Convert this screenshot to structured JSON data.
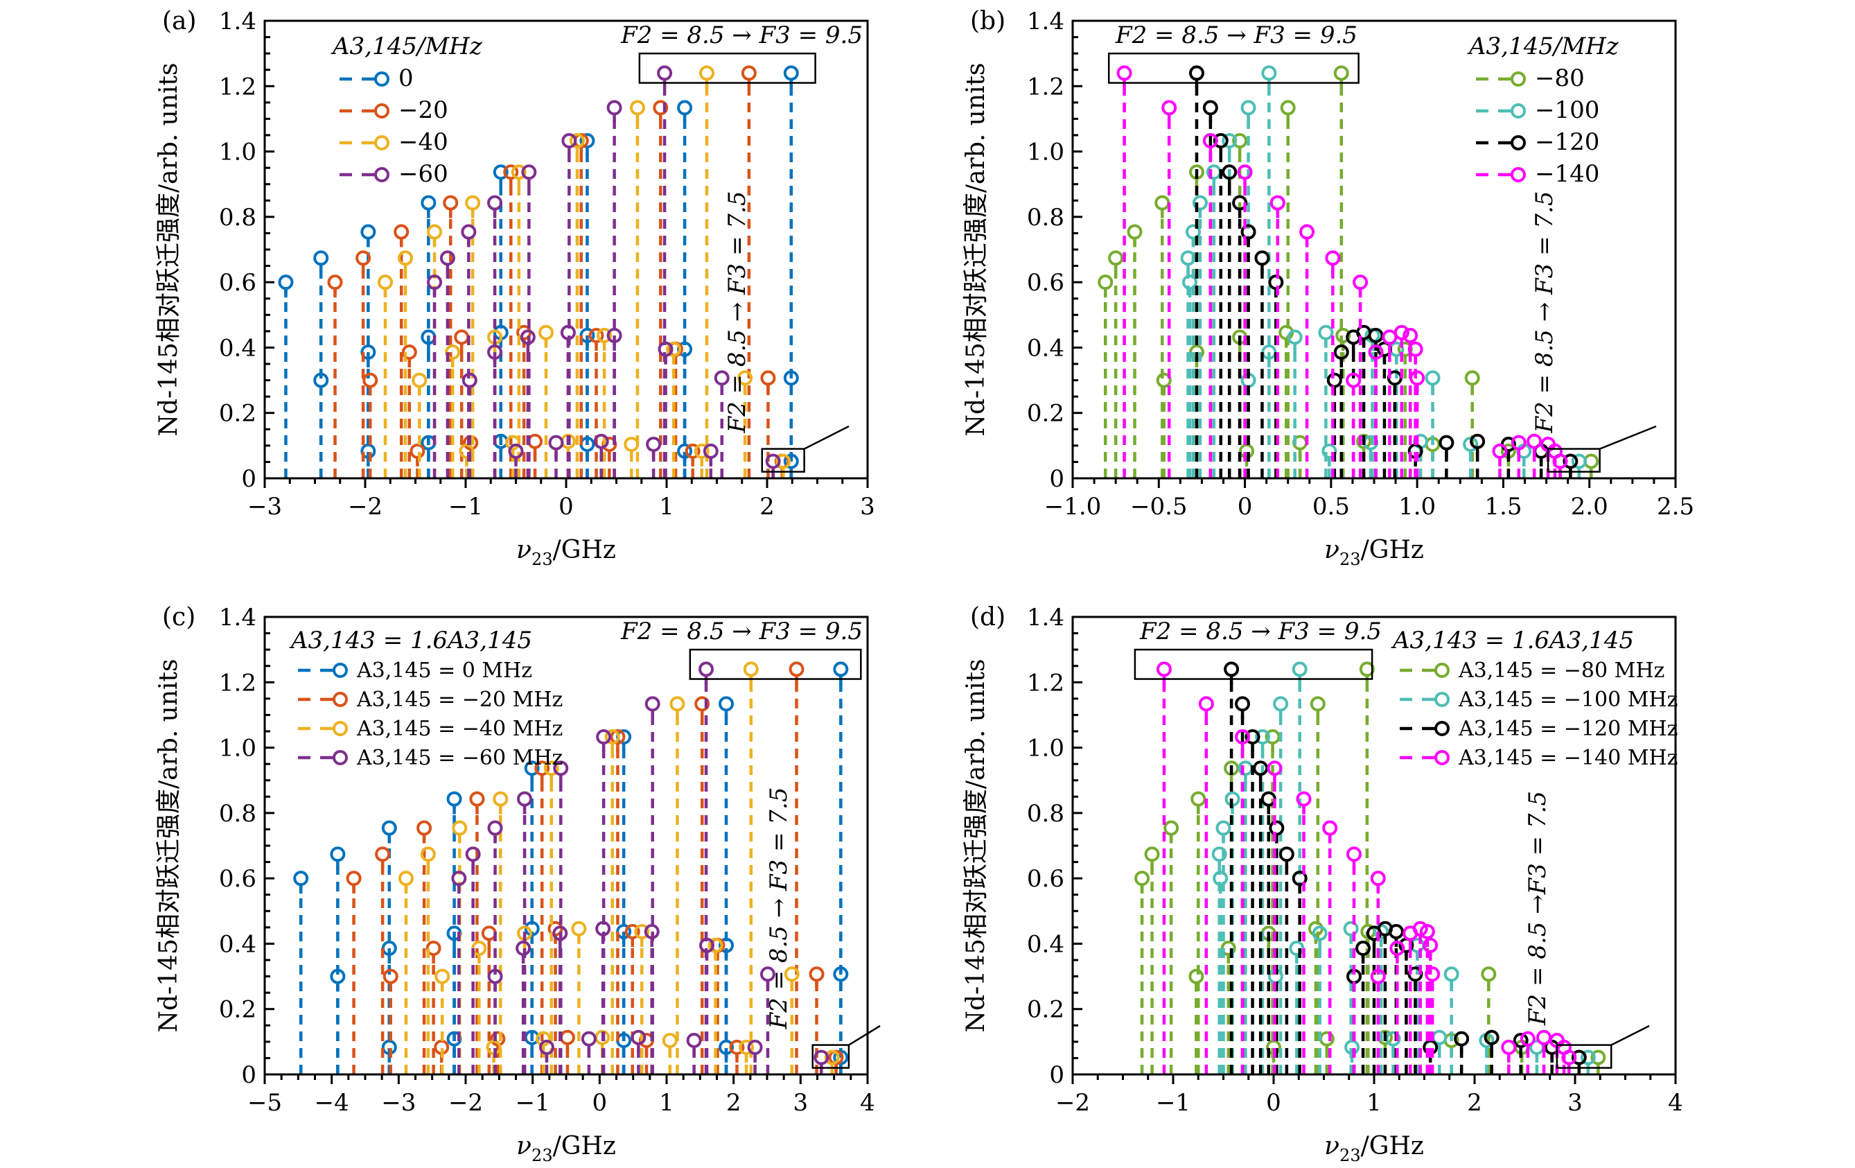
{
  "figure": {
    "ylabel": "Nd-145相对跃迁强度/arb. units",
    "xlabel": "ν23/GHz",
    "annot_top": "F2 = 8.5 → F3 = 9.5",
    "annot_side": "F2 = 8.5 → F3 = 7.5"
  },
  "chart_data": [
    {
      "panel": "(a)",
      "type": "stem",
      "xlim": [
        -3,
        3
      ],
      "ylim": [
        0,
        1.4
      ],
      "xticks": [
        -3,
        -2,
        -1,
        0,
        1,
        2,
        3
      ],
      "xtick_labels": [
        "−3",
        "−2",
        "−1",
        "0",
        "1",
        "2",
        "3"
      ],
      "yticks": [
        0,
        0.2,
        0.4,
        0.6,
        0.8,
        1.0,
        1.2,
        1.4
      ],
      "ytick_labels": [
        "0",
        "0.2",
        "0.4",
        "0.6",
        "0.8",
        "1.0",
        "1.2",
        "1.4"
      ],
      "xlabel": "ν23/GHz",
      "ylabel": "Nd-145相对跃迁强度/arb. units",
      "legend_title": "A3,145/MHz",
      "legend_placement": "top-left",
      "annotation_top": "F2 = 8.5 → F3 = 9.5",
      "annotation_side": "F2 = 8.5 → F3 = 7.5",
      "series": [
        {
          "name": "0",
          "color": "#0072BD",
          "x": [
            -2.79,
            -2.44,
            -1.97,
            -1.37,
            -0.65,
            0.21,
            1.18,
            2.24,
            -2.44,
            -1.97,
            -1.37,
            -0.65,
            0.21,
            1.18,
            2.24,
            -1.97,
            -1.37,
            -0.65,
            0.21,
            1.18,
            2.24
          ],
          "y": [
            0.6,
            0.674,
            0.754,
            0.843,
            0.937,
            1.033,
            1.134,
            1.24,
            0.3,
            0.386,
            0.432,
            0.446,
            0.437,
            0.395,
            0.307,
            0.083,
            0.109,
            0.113,
            0.104,
            0.083,
            0.052
          ]
        },
        {
          "name": "−20",
          "color": "#D95319",
          "x": [
            -2.3,
            -2.02,
            -1.64,
            -1.15,
            -0.55,
            0.15,
            0.94,
            1.82,
            -1.95,
            -1.56,
            -1.04,
            -0.42,
            0.3,
            1.09,
            2.01,
            -1.48,
            -0.95,
            -0.31,
            0.43,
            1.26,
            2.15
          ],
          "y": [
            0.6,
            0.674,
            0.754,
            0.843,
            0.937,
            1.033,
            1.134,
            1.24,
            0.3,
            0.386,
            0.432,
            0.446,
            0.437,
            0.395,
            0.307,
            0.083,
            0.109,
            0.113,
            0.104,
            0.083,
            0.052
          ]
        },
        {
          "name": "−40",
          "color": "#EDB120",
          "x": [
            -1.8,
            -1.6,
            -1.31,
            -0.93,
            -0.47,
            0.11,
            0.71,
            1.4,
            -1.46,
            -1.13,
            -0.71,
            -0.2,
            0.38,
            1.07,
            1.78,
            -0.99,
            -0.53,
            0.02,
            0.65,
            1.35,
            2.16
          ],
          "y": [
            0.6,
            0.674,
            0.754,
            0.843,
            0.937,
            1.033,
            1.134,
            1.24,
            0.3,
            0.386,
            0.432,
            0.446,
            0.437,
            0.395,
            0.307,
            0.083,
            0.109,
            0.113,
            0.104,
            0.083,
            0.052
          ]
        },
        {
          "name": "−60",
          "color": "#7E2F8E",
          "x": [
            -1.31,
            -1.18,
            -0.97,
            -0.71,
            -0.37,
            0.03,
            0.48,
            0.98,
            -0.96,
            -0.71,
            -0.38,
            0.02,
            0.48,
            0.99,
            1.55,
            -0.5,
            -0.1,
            0.35,
            0.87,
            1.44,
            2.06
          ],
          "y": [
            0.6,
            0.674,
            0.754,
            0.843,
            0.937,
            1.033,
            1.134,
            1.24,
            0.3,
            0.386,
            0.432,
            0.446,
            0.437,
            0.395,
            0.307,
            0.083,
            0.109,
            0.113,
            0.104,
            0.083,
            0.052
          ]
        }
      ]
    },
    {
      "panel": "(b)",
      "type": "stem",
      "xlim": [
        -1.0,
        2.5
      ],
      "ylim": [
        0,
        1.4
      ],
      "xticks": [
        -1.0,
        -0.5,
        0,
        0.5,
        1.0,
        1.5,
        2.0,
        2.5
      ],
      "xtick_labels": [
        "−1.0",
        "−0.5",
        "0",
        "0.5",
        "1.0",
        "1.5",
        "2.0",
        "2.5"
      ],
      "yticks": [
        0,
        0.2,
        0.4,
        0.6,
        0.8,
        1.0,
        1.2,
        1.4
      ],
      "ytick_labels": [
        "0",
        "0.2",
        "0.4",
        "0.6",
        "0.8",
        "1.0",
        "1.2",
        "1.4"
      ],
      "xlabel": "ν23/GHz",
      "ylabel": "Nd-145相对跃迁强度/arb. units",
      "legend_title": "A3,145/MHz",
      "legend_placement": "top-right",
      "annotation_top": "F2 = 8.5 → F3 = 9.5",
      "annotation_side": "F2 = 8.5 → F3 = 7.5",
      "series": [
        {
          "name": "−80",
          "color": "#77AC30",
          "x": [
            -0.81,
            -0.75,
            -0.64,
            -0.48,
            -0.28,
            -0.03,
            0.25,
            0.56,
            -0.47,
            -0.28,
            -0.03,
            0.24,
            0.57,
            0.93,
            1.32,
            0.01,
            0.32,
            0.69,
            1.09,
            1.53,
            2.01
          ],
          "y": [
            0.6,
            0.674,
            0.754,
            0.843,
            0.937,
            1.033,
            1.134,
            1.24,
            0.3,
            0.386,
            0.432,
            0.446,
            0.437,
            0.395,
            0.307,
            0.083,
            0.109,
            0.113,
            0.104,
            0.083,
            0.052
          ]
        },
        {
          "name": "−100",
          "color": "#4DBEB5",
          "x": [
            -0.32,
            -0.33,
            -0.3,
            -0.26,
            -0.18,
            -0.09,
            0.02,
            0.14,
            0.02,
            0.14,
            0.29,
            0.47,
            0.74,
            0.88,
            1.09,
            0.49,
            0.73,
            1.02,
            1.31,
            1.62,
            1.94
          ],
          "y": [
            0.6,
            0.674,
            0.754,
            0.843,
            0.937,
            1.033,
            1.134,
            1.24,
            0.3,
            0.386,
            0.432,
            0.446,
            0.437,
            0.395,
            0.307,
            0.083,
            0.109,
            0.113,
            0.104,
            0.083,
            0.052
          ]
        },
        {
          "name": "−120",
          "color": "#000000",
          "x": [
            0.18,
            0.1,
            0.02,
            -0.03,
            -0.09,
            -0.14,
            -0.2,
            -0.28,
            0.52,
            0.56,
            0.63,
            0.69,
            0.76,
            0.81,
            0.87,
            0.99,
            1.17,
            1.35,
            1.53,
            1.72,
            1.89
          ],
          "y": [
            0.6,
            0.674,
            0.754,
            0.843,
            0.937,
            1.033,
            1.134,
            1.24,
            0.3,
            0.386,
            0.432,
            0.446,
            0.437,
            0.395,
            0.307,
            0.083,
            0.109,
            0.113,
            0.104,
            0.083,
            0.052
          ]
        },
        {
          "name": "−140",
          "color": "#FF00FF",
          "x": [
            0.67,
            0.51,
            0.36,
            0.19,
            0.0,
            -0.2,
            -0.44,
            -0.7,
            0.63,
            0.76,
            0.84,
            0.91,
            0.96,
            0.99,
            1.0,
            1.48,
            1.59,
            1.68,
            1.76,
            1.8,
            1.83
          ],
          "y": [
            0.6,
            0.674,
            0.754,
            0.843,
            0.937,
            1.033,
            1.134,
            1.24,
            0.3,
            0.386,
            0.432,
            0.446,
            0.437,
            0.395,
            0.307,
            0.083,
            0.109,
            0.113,
            0.104,
            0.083,
            0.052
          ]
        }
      ]
    },
    {
      "panel": "(c)",
      "type": "stem",
      "xlim": [
        -5,
        4
      ],
      "ylim": [
        0,
        1.4
      ],
      "xticks": [
        -5,
        -4,
        -3,
        -2,
        -1,
        0,
        1,
        2,
        3,
        4
      ],
      "xtick_labels": [
        "−5",
        "−4",
        "−3",
        "−2",
        "−1",
        "0",
        "1",
        "2",
        "3",
        "4"
      ],
      "yticks": [
        0,
        0.2,
        0.4,
        0.6,
        0.8,
        1.0,
        1.2,
        1.4
      ],
      "ytick_labels": [
        "0",
        "0.2",
        "0.4",
        "0.6",
        "0.8",
        "1.0",
        "1.2",
        "1.4"
      ],
      "xlabel": "ν23/GHz",
      "ylabel": "Nd-145相对跃迁强度/arb. units",
      "legend_title": "A3,143 = 1.6A3,145",
      "legend_placement": "top-left",
      "annotation_top": "F2 = 8.5 → F3 = 9.5",
      "annotation_side": "F2 = 8.5 → F3 = 7.5",
      "series": [
        {
          "name": "A3,145 = 0 MHz",
          "color": "#0072BD",
          "x": [
            -4.46,
            -3.91,
            -3.14,
            -2.17,
            -1.01,
            0.36,
            1.89,
            3.6,
            -3.91,
            -3.14,
            -2.17,
            -1.01,
            0.36,
            1.89,
            3.6,
            -3.14,
            -2.17,
            -1.01,
            0.36,
            1.89,
            3.6
          ],
          "y": [
            0.6,
            0.674,
            0.754,
            0.843,
            0.937,
            1.033,
            1.134,
            1.24,
            0.3,
            0.386,
            0.432,
            0.446,
            0.437,
            0.395,
            0.307,
            0.083,
            0.109,
            0.113,
            0.104,
            0.083,
            0.052
          ]
        },
        {
          "name": "A3,145 = −20 MHz",
          "color": "#D95319",
          "x": [
            -3.67,
            -3.24,
            -2.62,
            -1.83,
            -0.86,
            0.27,
            1.53,
            2.94,
            -3.12,
            -2.48,
            -1.65,
            -0.66,
            0.49,
            1.76,
            3.24,
            -2.36,
            -1.52,
            -0.48,
            0.7,
            2.05,
            3.53
          ],
          "y": [
            0.6,
            0.674,
            0.754,
            0.843,
            0.937,
            1.033,
            1.134,
            1.24,
            0.3,
            0.386,
            0.432,
            0.446,
            0.437,
            0.395,
            0.307,
            0.083,
            0.109,
            0.113,
            0.104,
            0.083,
            0.052
          ]
        },
        {
          "name": "A3,145 = −40 MHz",
          "color": "#EDB120",
          "x": [
            -2.89,
            -2.56,
            -2.09,
            -1.48,
            -0.72,
            0.19,
            1.16,
            2.26,
            -2.35,
            -1.8,
            -1.12,
            -0.31,
            0.63,
            1.73,
            2.87,
            -1.58,
            -0.84,
            0.04,
            1.05,
            2.19,
            3.47
          ],
          "y": [
            0.6,
            0.674,
            0.754,
            0.843,
            0.937,
            1.033,
            1.134,
            1.24,
            0.3,
            0.386,
            0.432,
            0.446,
            0.437,
            0.395,
            0.307,
            0.083,
            0.109,
            0.113,
            0.104,
            0.083,
            0.052
          ]
        },
        {
          "name": "A3,145 = −60 MHz",
          "color": "#7E2F8E",
          "x": [
            -2.1,
            -1.89,
            -1.56,
            -1.12,
            -0.58,
            0.06,
            0.79,
            1.59,
            -1.56,
            -1.14,
            -0.59,
            0.05,
            0.78,
            1.6,
            2.51,
            -0.79,
            -0.16,
            0.58,
            1.41,
            2.32,
            3.31
          ],
          "y": [
            0.6,
            0.674,
            0.754,
            0.843,
            0.937,
            1.033,
            1.134,
            1.24,
            0.3,
            0.386,
            0.432,
            0.446,
            0.437,
            0.395,
            0.307,
            0.083,
            0.109,
            0.113,
            0.104,
            0.083,
            0.052
          ]
        }
      ]
    },
    {
      "panel": "(d)",
      "type": "stem",
      "xlim": [
        -2,
        4
      ],
      "ylim": [
        0,
        1.4
      ],
      "xticks": [
        -2,
        -1,
        0,
        1,
        2,
        3,
        4
      ],
      "xtick_labels": [
        "−2",
        "−1",
        "0",
        "1",
        "2",
        "3",
        "4"
      ],
      "yticks": [
        0,
        0.2,
        0.4,
        0.6,
        0.8,
        1.0,
        1.2,
        1.4
      ],
      "ytick_labels": [
        "0",
        "0.2",
        "0.4",
        "0.6",
        "0.8",
        "1.0",
        "1.2",
        "1.4"
      ],
      "xlabel": "ν23/GHz",
      "ylabel": "Nd-145相对跃迁强度/arb. units",
      "legend_title": "A3,143 = 1.6A3,145",
      "legend_placement": "top-right",
      "annotation_top": "F2 = 8.5 → F3 = 9.5",
      "annotation_side": "F2 = 8.5 →F3 = 7.5",
      "series": [
        {
          "name": "A3,145 = −80 MHz",
          "color": "#77AC30",
          "x": [
            -1.31,
            -1.21,
            -1.02,
            -0.75,
            -0.42,
            -0.01,
            0.44,
            0.93,
            -0.77,
            -0.45,
            -0.05,
            0.42,
            0.94,
            1.56,
            2.14,
            0.0,
            0.53,
            1.11,
            1.77,
            2.47,
            3.23
          ],
          "y": [
            0.6,
            0.674,
            0.754,
            0.843,
            0.937,
            1.033,
            1.134,
            1.24,
            0.3,
            0.386,
            0.432,
            0.446,
            0.437,
            0.395,
            0.307,
            0.083,
            0.109,
            0.113,
            0.104,
            0.083,
            0.052
          ]
        },
        {
          "name": "A3,145 = −100 MHz",
          "color": "#4DBEB5",
          "x": [
            -0.53,
            -0.54,
            -0.5,
            -0.41,
            -0.28,
            -0.11,
            0.07,
            0.26,
            0.02,
            0.23,
            0.46,
            0.77,
            1.07,
            1.43,
            1.77,
            0.78,
            1.19,
            1.65,
            2.12,
            2.62,
            3.13
          ],
          "y": [
            0.6,
            0.674,
            0.754,
            0.843,
            0.937,
            1.033,
            1.134,
            1.24,
            0.3,
            0.386,
            0.432,
            0.446,
            0.437,
            0.395,
            0.307,
            0.083,
            0.109,
            0.113,
            0.104,
            0.083,
            0.052
          ]
        },
        {
          "name": "A3,145 = −120 MHz",
          "color": "#000000",
          "x": [
            0.26,
            0.13,
            0.03,
            -0.05,
            -0.13,
            -0.21,
            -0.31,
            -0.42,
            0.8,
            0.89,
            1.0,
            1.11,
            1.22,
            1.32,
            1.41,
            1.56,
            1.87,
            2.17,
            2.46,
            2.77,
            3.04
          ],
          "y": [
            0.6,
            0.674,
            0.754,
            0.843,
            0.937,
            1.033,
            1.134,
            1.24,
            0.3,
            0.386,
            0.432,
            0.446,
            0.437,
            0.395,
            0.307,
            0.083,
            0.109,
            0.113,
            0.104,
            0.083,
            0.052
          ]
        },
        {
          "name": "A3,145 = −140 MHz",
          "color": "#FF00FF",
          "x": [
            1.04,
            0.8,
            0.56,
            0.3,
            0.01,
            -0.31,
            -0.67,
            -1.09,
            1.04,
            1.23,
            1.36,
            1.46,
            1.53,
            1.56,
            1.58,
            2.34,
            2.53,
            2.69,
            2.82,
            2.89,
            2.94
          ],
          "y": [
            0.6,
            0.674,
            0.754,
            0.843,
            0.937,
            1.033,
            1.134,
            1.24,
            0.3,
            0.386,
            0.432,
            0.446,
            0.437,
            0.395,
            0.307,
            0.083,
            0.109,
            0.113,
            0.104,
            0.083,
            0.052
          ]
        }
      ]
    }
  ]
}
